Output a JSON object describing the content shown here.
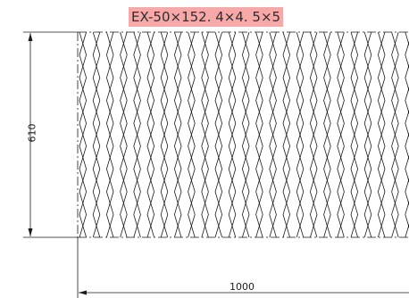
{
  "drawing": {
    "title": "EX-50×152. 4×4. 5×5",
    "dimension_height": "610",
    "dimension_width": "1000"
  },
  "colors": {
    "title_highlight": "#f7a8a8",
    "line": "#1a1a1a"
  }
}
